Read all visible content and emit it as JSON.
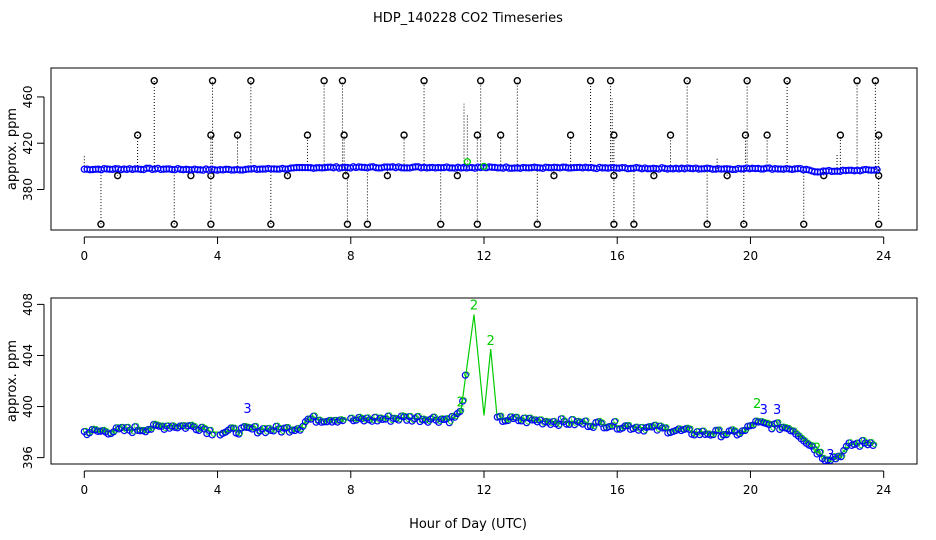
{
  "figure": {
    "title": "HDP_140228  CO2 Timeseries",
    "xlabel": "Hour of Day (UTC)"
  },
  "chart_data": [
    {
      "type": "scatter",
      "panel": "top",
      "title": "HDP_140228  CO2 Timeseries",
      "xlabel": "",
      "ylabel": "approx. ppm",
      "xlim": [
        -1,
        25
      ],
      "ylim": [
        345,
        485
      ],
      "xticks": [
        0,
        4,
        8,
        12,
        16,
        20,
        24
      ],
      "yticks": [
        380,
        420,
        460
      ],
      "grid": false,
      "legend": "none",
      "colors": {
        "raw": "#000000",
        "filtered": "#0000ff",
        "flagged": "#00cc00"
      },
      "baseline": [
        [
          0,
          397.5
        ],
        [
          2,
          397.8
        ],
        [
          4,
          397.0
        ],
        [
          6,
          398.0
        ],
        [
          7,
          399.0
        ],
        [
          10,
          399.2
        ],
        [
          12,
          399.0
        ],
        [
          16,
          398.5
        ],
        [
          19.8,
          397.8
        ],
        [
          20,
          398.5
        ],
        [
          21.5,
          397.5
        ],
        [
          22,
          395.5
        ],
        [
          23.8,
          397.0
        ]
      ],
      "spikes_high": [
        2.1,
        3.85,
        5.0,
        7.2,
        7.75,
        10.2,
        11.9,
        13.0,
        15.2,
        15.8,
        18.1,
        19.9,
        21.1,
        23.2,
        23.75
      ],
      "spikes_mid": [
        1.6,
        3.8,
        4.6,
        6.7,
        7.8,
        9.6,
        11.8,
        12.5,
        14.6,
        15.9,
        17.6,
        19.85,
        20.5,
        22.7,
        23.85
      ],
      "spikes_low": [
        0.5,
        2.7,
        3.8,
        5.6,
        7.9,
        8.5,
        10.7,
        11.8,
        13.6,
        15.9,
        16.5,
        18.7,
        19.8,
        21.6,
        23.85
      ],
      "dips": [
        1.0,
        3.2,
        3.8,
        6.1,
        7.85,
        9.1,
        11.2,
        14.1,
        15.9,
        17.1,
        19.3,
        22.2,
        23.85
      ],
      "flagged": [
        [
          11.5,
          404
        ],
        [
          12.0,
          400
        ]
      ]
    },
    {
      "type": "scatter",
      "panel": "bottom",
      "xlabel": "Hour of Day (UTC)",
      "ylabel": "approx. ppm",
      "xlim": [
        -1,
        25
      ],
      "ylim": [
        395.5,
        408.5
      ],
      "xticks": [
        0,
        4,
        8,
        12,
        16,
        20,
        24
      ],
      "yticks": [
        396,
        400,
        404,
        408
      ],
      "grid": false,
      "legend": "none",
      "colors": {
        "series": "#00cc00",
        "points": "#0000ff"
      },
      "series": [
        {
          "values": [
            [
              0,
              398.0
            ],
            [
              1,
              398.1
            ],
            [
              2,
              398.3
            ],
            [
              2.5,
              398.5
            ],
            [
              3.5,
              398.4
            ],
            [
              3.8,
              398.0
            ],
            [
              4.1,
              398.0
            ],
            [
              5,
              398.2
            ],
            [
              6,
              398.2
            ],
            [
              6.5,
              398.4
            ],
            [
              6.7,
              399.0
            ],
            [
              7.5,
              399.0
            ],
            [
              7.8,
              399.0
            ],
            [
              8.0,
              398.9
            ],
            [
              9.5,
              399.1
            ],
            [
              11,
              399.0
            ],
            [
              11.3,
              399.5
            ],
            [
              11.7,
              407.2
            ],
            [
              12.0,
              399.3
            ],
            [
              12.2,
              404.5
            ],
            [
              12.4,
              399.0
            ],
            [
              13.5,
              398.9
            ],
            [
              15.5,
              398.6
            ],
            [
              15.8,
              398.6
            ],
            [
              16.0,
              398.5
            ],
            [
              17.5,
              398.2
            ],
            [
              18.5,
              397.9
            ],
            [
              19.5,
              397.9
            ],
            [
              19.8,
              398.0
            ],
            [
              20.1,
              398.7
            ],
            [
              21.2,
              398.3
            ],
            [
              21.6,
              397.5
            ],
            [
              22.2,
              396.0
            ],
            [
              22.6,
              396.0
            ],
            [
              23.0,
              397.0
            ],
            [
              23.7,
              397.2
            ]
          ]
        }
      ],
      "annotations": [
        {
          "text": "3",
          "x": 4.9,
          "y": 399.5,
          "color": "#0000ff"
        },
        {
          "text": "2",
          "x": 11.3,
          "y": 400.0,
          "color": "#00cc00"
        },
        {
          "text": "2",
          "x": 11.7,
          "y": 407.6,
          "color": "#00cc00"
        },
        {
          "text": "2",
          "x": 12.2,
          "y": 404.8,
          "color": "#00cc00"
        },
        {
          "text": "2",
          "x": 20.2,
          "y": 399.9,
          "color": "#00cc00"
        },
        {
          "text": "3",
          "x": 20.4,
          "y": 399.4,
          "color": "#0000ff"
        },
        {
          "text": "3",
          "x": 20.8,
          "y": 399.4,
          "color": "#0000ff"
        },
        {
          "text": "2",
          "x": 22.0,
          "y": 396.4,
          "color": "#00cc00"
        },
        {
          "text": "3",
          "x": 22.4,
          "y": 395.9,
          "color": "#0000ff"
        }
      ]
    }
  ]
}
